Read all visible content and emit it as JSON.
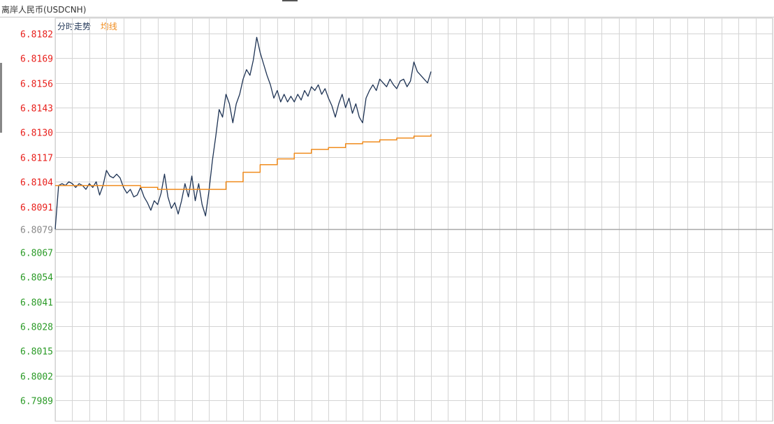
{
  "window": {
    "title": "离岸人民币(USDCNH)"
  },
  "legend": {
    "price_label": "分时走势",
    "avg_label": "均线"
  },
  "colors": {
    "up": "#e8201c",
    "down": "#2a9a26",
    "base": "#888888",
    "price_line": "#1e3354",
    "avg_line": "#f08c1e",
    "grid": "#d4d4d4",
    "base_line": "#a8a8a8"
  },
  "chart_data": {
    "type": "line",
    "title": "离岸人民币(USDCNH)",
    "ylim": [
      6.7976,
      6.8182
    ],
    "base_value": 6.8079,
    "y_ticks": [
      "6.8182",
      "6.8169",
      "6.8156",
      "6.8143",
      "6.8130",
      "6.8117",
      "6.8104",
      "6.8091",
      "6.8079",
      "6.8067",
      "6.8054",
      "6.8041",
      "6.8028",
      "6.8015",
      "6.8002",
      "6.7989"
    ],
    "x_slots": 42,
    "series": [
      {
        "name": "分时走势",
        "x": [
          0,
          0.2,
          0.4,
          0.6,
          0.8,
          1,
          1.2,
          1.4,
          1.6,
          1.8,
          2,
          2.2,
          2.4,
          2.6,
          2.8,
          3,
          3.2,
          3.4,
          3.6,
          3.8,
          4,
          4.2,
          4.4,
          4.6,
          4.8,
          5,
          5.2,
          5.4,
          5.6,
          5.8,
          6,
          6.2,
          6.4,
          6.6,
          6.8,
          7,
          7.2,
          7.4,
          7.6,
          7.8,
          8,
          8.2,
          8.4,
          8.6,
          8.8,
          9,
          9.2,
          9.4,
          9.6,
          9.8,
          10,
          10.2,
          10.4,
          10.6,
          10.8,
          11,
          11.2,
          11.4,
          11.6,
          11.8,
          12,
          12.2,
          12.4,
          12.6,
          12.8,
          13,
          13.2,
          13.4,
          13.6,
          13.8,
          14,
          14.2,
          14.4,
          14.6,
          14.8,
          15,
          15.2,
          15.4,
          15.6,
          15.8,
          16,
          16.2,
          16.4,
          16.6,
          16.8,
          17,
          17.2,
          17.4,
          17.6,
          17.8,
          18,
          18.2,
          18.4,
          18.6,
          18.8,
          19,
          19.2,
          19.4,
          19.6,
          19.8,
          20,
          20.2,
          20.4,
          20.6,
          20.8,
          21,
          21.2,
          21.4,
          21.6,
          21.8,
          22
        ],
        "values": [
          6.8079,
          6.8102,
          6.8103,
          6.8102,
          6.8104,
          6.8103,
          6.8101,
          6.8103,
          6.8102,
          6.81,
          6.8103,
          6.8101,
          6.8104,
          6.8097,
          6.8102,
          6.811,
          6.8107,
          6.8106,
          6.8108,
          6.8106,
          6.8101,
          6.8098,
          6.81,
          6.8096,
          6.8097,
          6.8101,
          6.8096,
          6.8093,
          6.8089,
          6.8094,
          6.8092,
          6.8098,
          6.8108,
          6.8096,
          6.809,
          6.8093,
          6.8087,
          6.8094,
          6.8103,
          6.8096,
          6.8107,
          6.8094,
          6.8103,
          6.8092,
          6.8086,
          6.8099,
          6.8115,
          6.8128,
          6.8142,
          6.8138,
          6.815,
          6.8145,
          6.8135,
          6.8145,
          6.815,
          6.8158,
          6.8163,
          6.816,
          6.8168,
          6.818,
          6.8172,
          6.8166,
          6.816,
          6.8155,
          6.8148,
          6.8152,
          6.8146,
          6.815,
          6.8146,
          6.8149,
          6.8146,
          6.815,
          6.8147,
          6.8152,
          6.8149,
          6.8154,
          6.8152,
          6.8155,
          6.815,
          6.8153,
          6.8148,
          6.8144,
          6.8138,
          6.8145,
          6.815,
          6.8143,
          6.8148,
          6.814,
          6.8145,
          6.8138,
          6.8135,
          6.8148,
          6.8152,
          6.8155,
          6.8152,
          6.8158,
          6.8156,
          6.8154,
          6.8158,
          6.8155,
          6.8153,
          6.8157,
          6.8158,
          6.8154,
          6.8157,
          6.8167,
          6.8162,
          6.816,
          6.8158,
          6.8156,
          6.8162
        ]
      },
      {
        "name": "均线",
        "x": [
          0,
          1,
          2,
          3,
          4,
          5,
          6,
          7,
          8,
          9,
          10,
          11,
          12,
          13,
          14,
          15,
          16,
          17,
          18,
          19,
          20,
          21,
          22
        ],
        "values": [
          6.8102,
          6.8102,
          6.8102,
          6.8102,
          6.8102,
          6.8101,
          6.81,
          6.81,
          6.81,
          6.81,
          6.8104,
          6.8109,
          6.8113,
          6.8116,
          6.8119,
          6.8121,
          6.8122,
          6.8124,
          6.8125,
          6.8126,
          6.8127,
          6.8128,
          6.8129
        ]
      }
    ]
  }
}
